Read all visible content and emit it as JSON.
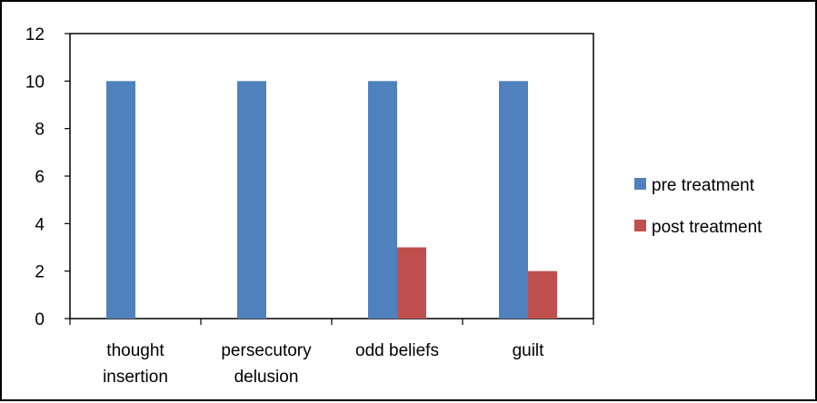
{
  "chart_data": {
    "type": "bar",
    "categories": [
      [
        "thought",
        "insertion"
      ],
      [
        "persecutory",
        "delusion"
      ],
      [
        "odd beliefs"
      ],
      [
        "guilt"
      ]
    ],
    "series": [
      {
        "name": "pre treatment",
        "values": [
          10,
          10,
          10,
          10
        ],
        "color": "#4f81bd"
      },
      {
        "name": "post treatment",
        "values": [
          0,
          0,
          3,
          2
        ],
        "color": "#c0504d"
      }
    ],
    "ylim": [
      0,
      12
    ],
    "yticks": [
      0,
      2,
      4,
      6,
      8,
      10,
      12
    ],
    "grid": false,
    "legend_position": "right"
  }
}
